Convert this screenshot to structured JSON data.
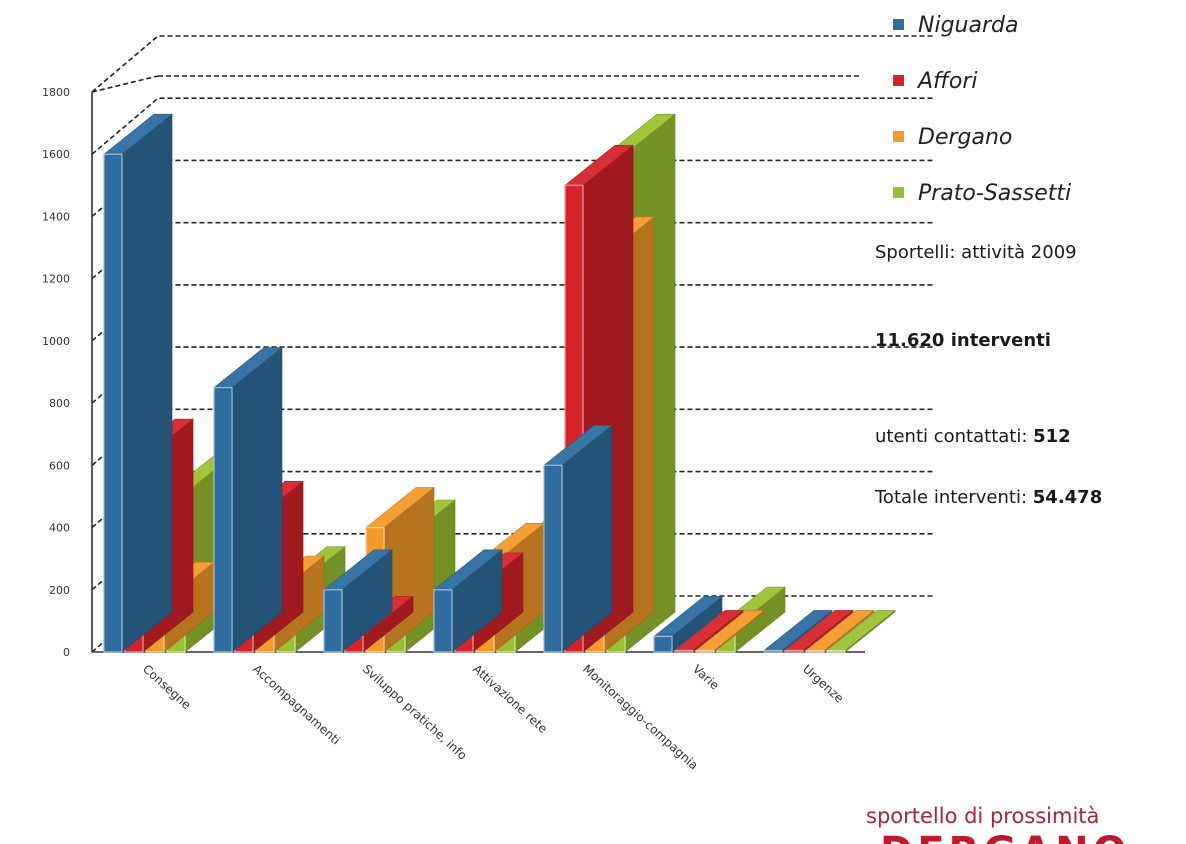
{
  "chart_data": {
    "type": "bar",
    "categories": [
      "Consegne",
      "Accompagnamenti",
      "Sviluppo pratiche, info",
      "Attivazione rete",
      "Monitoraggio-compagnia",
      "Varie",
      "Urgenze"
    ],
    "series": [
      {
        "name": "Niguarda",
        "color": "#2f6e9f",
        "values": [
          1600,
          850,
          200,
          200,
          600,
          50,
          5
        ]
      },
      {
        "name": "Affori",
        "color": "#d6232a",
        "values": [
          620,
          420,
          50,
          190,
          1500,
          5,
          5
        ]
      },
      {
        "name": "Dergano",
        "color": "#f39a2b",
        "values": [
          160,
          180,
          400,
          285,
          1270,
          5,
          5
        ]
      },
      {
        "name": "Prato-Sassetti",
        "color": "#9bc132",
        "values": [
          510,
          210,
          360,
          300,
          1600,
          80,
          5
        ]
      }
    ],
    "yticks": [
      0,
      200,
      400,
      600,
      800,
      1000,
      1200,
      1400,
      1600,
      1800
    ],
    "ylim": [
      0,
      1800
    ],
    "legend_position": "top-right",
    "grid": true
  },
  "annotations": {
    "line1": "Sportelli: attività 2009",
    "line2": "11.620 interventi",
    "line3_label": "utenti contattati: ",
    "line3_value": "512",
    "line4_label": "Totale interventi: ",
    "line4_value": "54.478"
  },
  "branding": {
    "line1": "sportello di prossimità",
    "line2": "DERGANO"
  }
}
